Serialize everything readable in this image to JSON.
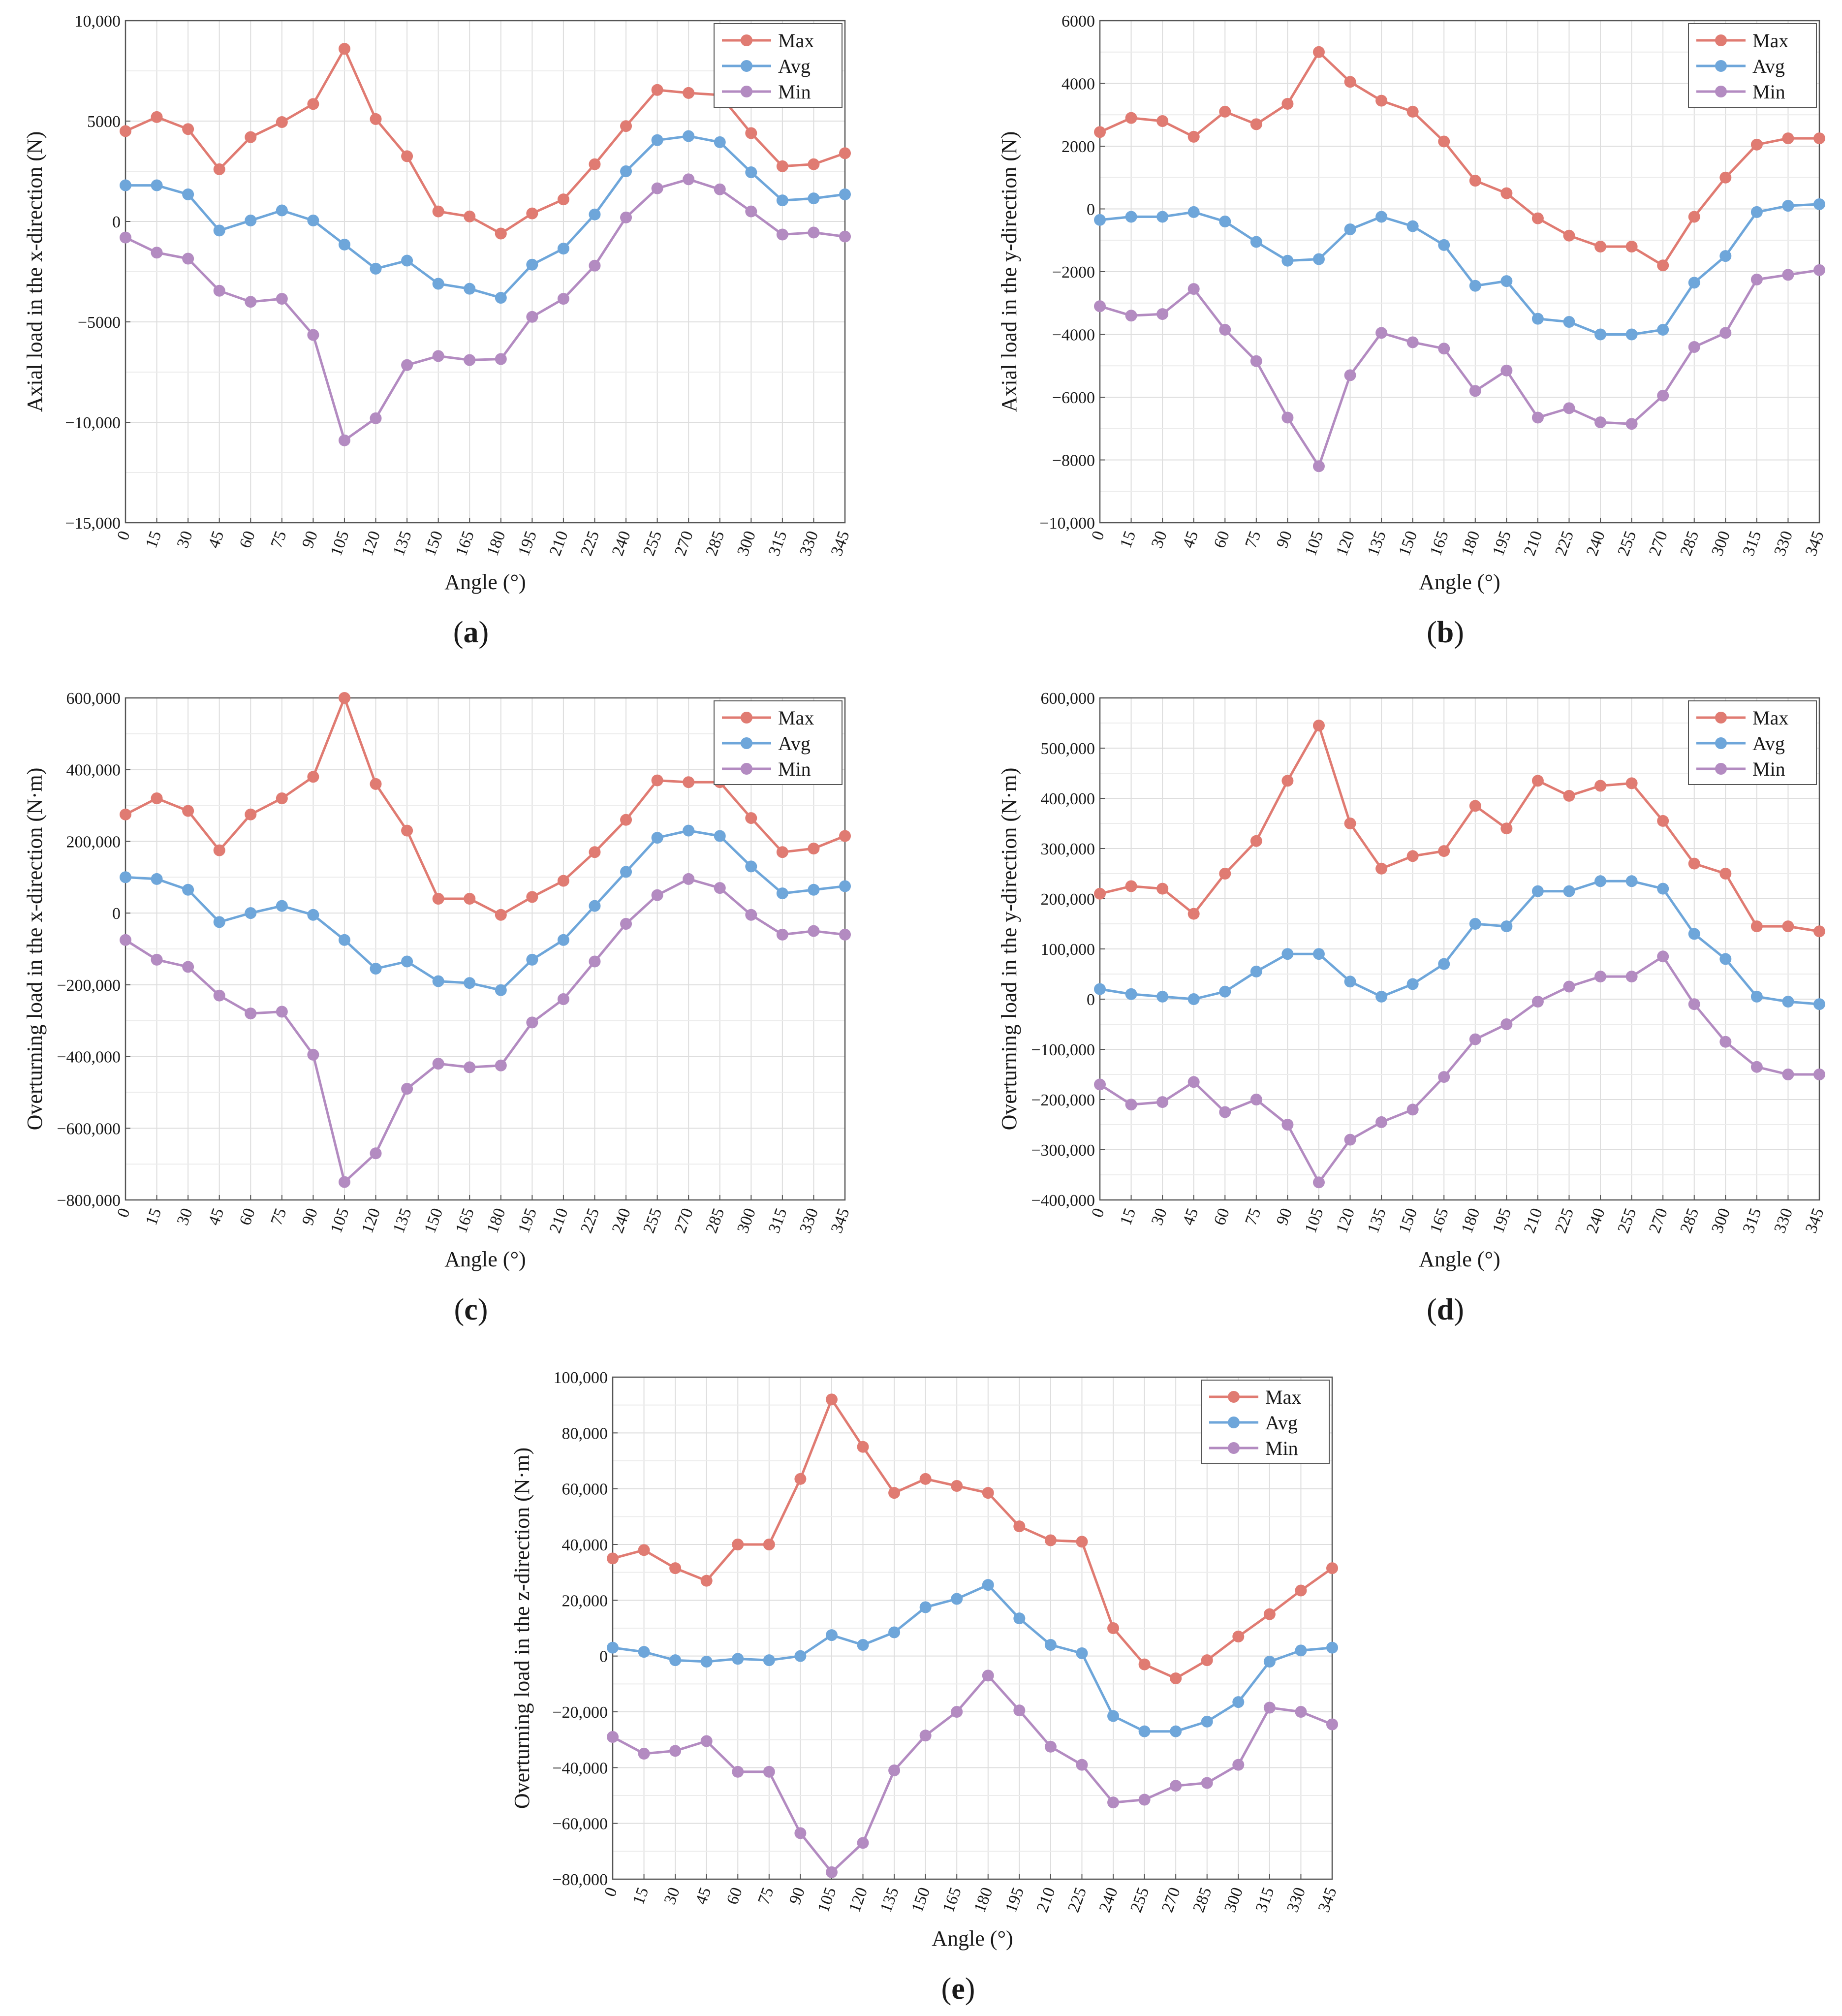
{
  "figure": {
    "colors": {
      "max": "#e07b72",
      "avg": "#6ea6da",
      "min": "#b38bc1",
      "grid": "#dedede",
      "axis": "#555555"
    },
    "legend": [
      "Max",
      "Avg",
      "Min"
    ]
  },
  "chart_data": [
    {
      "id": "a",
      "type": "line",
      "panel_label": "a",
      "xlabel": "Angle (°)",
      "ylabel": "Axial load in the x-direction (N)",
      "categories": [
        "0",
        "15",
        "30",
        "45",
        "60",
        "75",
        "90",
        "105",
        "120",
        "135",
        "150",
        "165",
        "180",
        "195",
        "210",
        "225",
        "240",
        "255",
        "270",
        "285",
        "300",
        "315",
        "330",
        "345"
      ],
      "ylim": [
        -15000,
        10000
      ],
      "yticks": [
        10000,
        5000,
        0,
        -5000,
        -10000,
        -15000
      ],
      "ytick_labels": [
        "10,000",
        "5000",
        "0",
        "−5000",
        "−10,000",
        "−15,000"
      ],
      "legend_position": "top-right",
      "grid": true,
      "series": [
        {
          "name": "Max",
          "values": [
            4500,
            5200,
            4600,
            2600,
            4200,
            4950,
            5850,
            8600,
            5100,
            3250,
            500,
            250,
            -600,
            400,
            1100,
            2850,
            4750,
            6550,
            6400,
            6300,
            4400,
            2750,
            2850,
            3400
          ]
        },
        {
          "name": "Avg",
          "values": [
            1800,
            1800,
            1350,
            -450,
            50,
            550,
            50,
            -1150,
            -2350,
            -1950,
            -3100,
            -3350,
            -3800,
            -2150,
            -1350,
            350,
            2500,
            4050,
            4250,
            3950,
            2450,
            1050,
            1150,
            1350
          ]
        },
        {
          "name": "Min",
          "values": [
            -800,
            -1550,
            -1850,
            -3450,
            -4000,
            -3850,
            -5650,
            -10900,
            -9800,
            -7150,
            -6700,
            -6900,
            -6850,
            -4750,
            -3850,
            -2200,
            200,
            1650,
            2100,
            1600,
            500,
            -650,
            -550,
            -750
          ]
        }
      ]
    },
    {
      "id": "b",
      "type": "line",
      "panel_label": "b",
      "xlabel": "Angle (°)",
      "ylabel": "Axial load in the y-direction (N)",
      "categories": [
        "0",
        "15",
        "30",
        "45",
        "60",
        "75",
        "90",
        "105",
        "120",
        "135",
        "150",
        "165",
        "180",
        "195",
        "210",
        "225",
        "240",
        "255",
        "270",
        "285",
        "300",
        "315",
        "330",
        "345"
      ],
      "ylim": [
        -10000,
        6000
      ],
      "yticks": [
        6000,
        4000,
        2000,
        0,
        -2000,
        -4000,
        -6000,
        -8000,
        -10000
      ],
      "ytick_labels": [
        "6000",
        "4000",
        "2000",
        "0",
        "−2000",
        "−4000",
        "−6000",
        "−8000",
        "−10,000"
      ],
      "legend_position": "top-right",
      "grid": true,
      "series": [
        {
          "name": "Max",
          "values": [
            2450,
            2900,
            2800,
            2300,
            3100,
            2700,
            3350,
            5000,
            4050,
            3450,
            3100,
            2150,
            900,
            500,
            -300,
            -850,
            -1200,
            -1200,
            -1800,
            -250,
            1000,
            2050,
            2250,
            2250
          ]
        },
        {
          "name": "Avg",
          "values": [
            -350,
            -250,
            -250,
            -100,
            -400,
            -1050,
            -1650,
            -1600,
            -650,
            -250,
            -550,
            -1150,
            -2450,
            -2300,
            -3500,
            -3600,
            -4000,
            -4000,
            -3850,
            -2350,
            -1500,
            -100,
            100,
            150
          ]
        },
        {
          "name": "Min",
          "values": [
            -3100,
            -3400,
            -3350,
            -2550,
            -3850,
            -4850,
            -6650,
            -8200,
            -5300,
            -3950,
            -4250,
            -4450,
            -5800,
            -5150,
            -6650,
            -6350,
            -6800,
            -6850,
            -5950,
            -4400,
            -3950,
            -2250,
            -2100,
            -1950
          ]
        }
      ]
    },
    {
      "id": "c",
      "type": "line",
      "panel_label": "c",
      "xlabel": "Angle (°)",
      "ylabel": "Overturning load in the x-direction (N·m)",
      "categories": [
        "0",
        "15",
        "30",
        "45",
        "60",
        "75",
        "90",
        "105",
        "120",
        "135",
        "150",
        "165",
        "180",
        "195",
        "210",
        "225",
        "240",
        "255",
        "270",
        "285",
        "300",
        "315",
        "330",
        "345"
      ],
      "ylim": [
        -800000,
        600000
      ],
      "yticks": [
        600000,
        400000,
        200000,
        0,
        -200000,
        -400000,
        -600000,
        -800000
      ],
      "ytick_labels": [
        "600,000",
        "400,000",
        "200,000",
        "0",
        "−200,000",
        "−400,000",
        "−600,000",
        "−800,000"
      ],
      "legend_position": "top-right",
      "grid": true,
      "series": [
        {
          "name": "Max",
          "values": [
            275000,
            320000,
            285000,
            175000,
            275000,
            320000,
            380000,
            600000,
            360000,
            230000,
            40000,
            40000,
            -5000,
            45000,
            90000,
            170000,
            260000,
            370000,
            365000,
            365000,
            265000,
            170000,
            180000,
            215000
          ]
        },
        {
          "name": "Avg",
          "values": [
            100000,
            95000,
            65000,
            -25000,
            0,
            20000,
            -5000,
            -75000,
            -155000,
            -135000,
            -190000,
            -195000,
            -215000,
            -130000,
            -75000,
            20000,
            115000,
            210000,
            230000,
            215000,
            130000,
            55000,
            65000,
            75000
          ]
        },
        {
          "name": "Min",
          "values": [
            -75000,
            -130000,
            -150000,
            -230000,
            -280000,
            -275000,
            -395000,
            -750000,
            -670000,
            -490000,
            -420000,
            -430000,
            -425000,
            -305000,
            -240000,
            -135000,
            -30000,
            50000,
            95000,
            70000,
            -5000,
            -60000,
            -50000,
            -60000
          ]
        }
      ]
    },
    {
      "id": "d",
      "type": "line",
      "panel_label": "d",
      "xlabel": "Angle (°)",
      "ylabel": "Overturning load in the y-direction (N·m)",
      "categories": [
        "0",
        "15",
        "30",
        "45",
        "60",
        "75",
        "90",
        "105",
        "120",
        "135",
        "150",
        "165",
        "180",
        "195",
        "210",
        "225",
        "240",
        "255",
        "270",
        "285",
        "300",
        "315",
        "330",
        "345"
      ],
      "ylim": [
        -400000,
        600000
      ],
      "yticks": [
        600000,
        500000,
        400000,
        300000,
        200000,
        100000,
        0,
        -100000,
        -200000,
        -300000,
        -400000
      ],
      "ytick_labels": [
        "600,000",
        "500,000",
        "400,000",
        "300,000",
        "200,000",
        "100,000",
        "0",
        "−100,000",
        "−200,000",
        "−300,000",
        "−400,000"
      ],
      "legend_position": "top-right",
      "grid": true,
      "series": [
        {
          "name": "Max",
          "values": [
            210000,
            225000,
            220000,
            170000,
            250000,
            315000,
            435000,
            545000,
            350000,
            260000,
            285000,
            295000,
            385000,
            340000,
            435000,
            405000,
            425000,
            430000,
            355000,
            270000,
            250000,
            145000,
            145000,
            135000
          ]
        },
        {
          "name": "Avg",
          "values": [
            20000,
            10000,
            5000,
            0,
            15000,
            55000,
            90000,
            90000,
            35000,
            5000,
            30000,
            70000,
            150000,
            145000,
            215000,
            215000,
            235000,
            235000,
            220000,
            130000,
            80000,
            5000,
            -5000,
            -10000
          ]
        },
        {
          "name": "Min",
          "values": [
            -170000,
            -210000,
            -205000,
            -165000,
            -225000,
            -200000,
            -250000,
            -365000,
            -280000,
            -245000,
            -220000,
            -155000,
            -80000,
            -50000,
            -5000,
            25000,
            45000,
            45000,
            85000,
            -10000,
            -85000,
            -135000,
            -150000,
            -150000
          ]
        }
      ]
    },
    {
      "id": "e",
      "type": "line",
      "panel_label": "e",
      "xlabel": "Angle (°)",
      "ylabel": "Overturning load in the z-direction (N·m)",
      "categories": [
        "0",
        "15",
        "30",
        "45",
        "60",
        "75",
        "90",
        "105",
        "120",
        "135",
        "150",
        "165",
        "180",
        "195",
        "210",
        "225",
        "240",
        "255",
        "270",
        "285",
        "300",
        "315",
        "330",
        "345"
      ],
      "ylim": [
        -80000,
        100000
      ],
      "yticks": [
        100000,
        80000,
        60000,
        40000,
        20000,
        0,
        -20000,
        -40000,
        -60000,
        -80000
      ],
      "ytick_labels": [
        "100,000",
        "80,000",
        "60,000",
        "40,000",
        "20,000",
        "0",
        "−20,000",
        "−40,000",
        "−60,000",
        "−80,000"
      ],
      "legend_position": "top-right",
      "grid": true,
      "series": [
        {
          "name": "Max",
          "values": [
            35000,
            38000,
            31500,
            27000,
            40000,
            40000,
            63500,
            92000,
            75000,
            58500,
            63500,
            61000,
            58500,
            46500,
            41500,
            41000,
            10000,
            -3000,
            -8000,
            -1500,
            7000,
            15000,
            23500,
            31500
          ]
        },
        {
          "name": "Avg",
          "values": [
            3000,
            1500,
            -1500,
            -2000,
            -1000,
            -1500,
            0,
            7500,
            4000,
            8500,
            17500,
            20500,
            25500,
            13500,
            4000,
            1000,
            -21500,
            -27000,
            -27000,
            -23500,
            -16500,
            -2000,
            2000,
            3000
          ]
        },
        {
          "name": "Min",
          "values": [
            -29000,
            -35000,
            -34000,
            -30500,
            -41500,
            -41500,
            -63500,
            -77500,
            -67000,
            -41000,
            -28500,
            -20000,
            -7000,
            -19500,
            -32500,
            -39000,
            -52500,
            -51500,
            -46500,
            -45500,
            -39000,
            -18500,
            -20000,
            -24500
          ]
        }
      ]
    }
  ]
}
